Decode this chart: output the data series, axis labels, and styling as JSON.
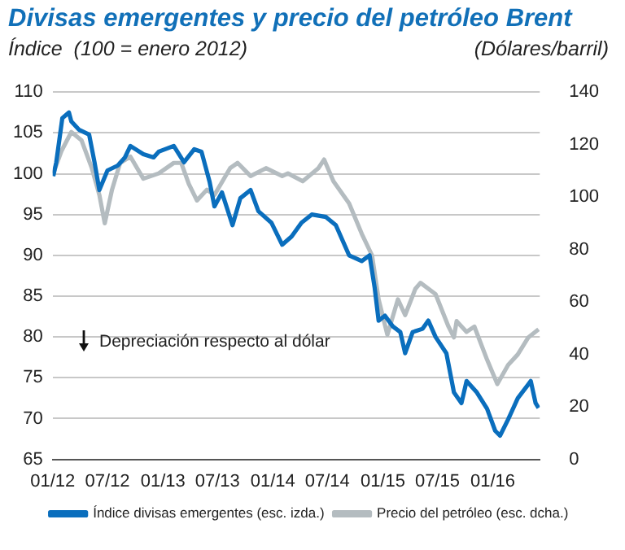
{
  "chart_data": {
    "type": "line",
    "title": "Divisas emergentes y precio del petróleo Brent",
    "ylabel": "Índice  (100 = enero 2012)",
    "y2label": "(Dólares/barril)",
    "annotations": [
      "Depreciación respecto al dólar"
    ],
    "xlim": [
      "2012-01-01",
      "2016-06-05"
    ],
    "xticks": [
      {
        "value": "2012-01-01",
        "label": "01/12"
      },
      {
        "value": "2012-07-01",
        "label": "07/12"
      },
      {
        "value": "2013-01-01",
        "label": "01/13"
      },
      {
        "value": "2013-07-01",
        "label": "07/13"
      },
      {
        "value": "2014-01-01",
        "label": "01/14"
      },
      {
        "value": "2014-07-01",
        "label": "07/14"
      },
      {
        "value": "2015-01-01",
        "label": "01/15"
      },
      {
        "value": "2015-07-01",
        "label": "07/15"
      },
      {
        "value": "2016-01-01",
        "label": "01/16"
      }
    ],
    "ylim": [
      65,
      110
    ],
    "yticks": [
      65,
      70,
      75,
      80,
      85,
      90,
      95,
      100,
      105,
      110
    ],
    "y2lim": [
      0,
      140
    ],
    "y2ticks": [
      0,
      20,
      40,
      60,
      80,
      100,
      120,
      140
    ],
    "grid": "y",
    "legend": "bottom",
    "marker": "none",
    "line_style": "solid",
    "series": [
      {
        "name": "Índice divisas emergentes (esc. izda.)",
        "color": "#0a6ebd",
        "axis": "y",
        "x": [
          "2012-01-03",
          "2012-01-13",
          "2012-02-02",
          "2012-02-24",
          "2012-03-03",
          "2012-03-28",
          "2012-05-01",
          "2012-05-19",
          "2012-06-04",
          "2012-07-01",
          "2012-08-04",
          "2012-08-28",
          "2012-09-15",
          "2012-10-28",
          "2012-12-01",
          "2012-12-18",
          "2013-02-06",
          "2013-03-12",
          "2013-04-15",
          "2013-05-09",
          "2013-06-05",
          "2013-06-21",
          "2013-07-16",
          "2013-08-20",
          "2013-09-15",
          "2013-10-19",
          "2013-11-14",
          "2013-12-27",
          "2014-02-01",
          "2014-03-04",
          "2014-04-06",
          "2014-05-10",
          "2014-06-26",
          "2014-07-29",
          "2014-09-11",
          "2014-10-23",
          "2014-11-18",
          "2014-12-05",
          "2014-12-18",
          "2015-01-08",
          "2015-02-03",
          "2015-02-28",
          "2015-03-16",
          "2015-04-10",
          "2015-05-13",
          "2015-06-01",
          "2015-06-25",
          "2015-07-31",
          "2015-08-25",
          "2015-09-19",
          "2015-10-06",
          "2015-11-09",
          "2015-12-13",
          "2016-01-09",
          "2016-01-25",
          "2016-02-21",
          "2016-03-24",
          "2016-04-28",
          "2016-05-06",
          "2016-05-22",
          "2016-06-01"
        ],
        "values": [
          99.7,
          101.4,
          106.8,
          107.5,
          106.4,
          105.4,
          104.8,
          101.4,
          98,
          100.4,
          101,
          102,
          103.4,
          102.4,
          102,
          102.7,
          103.4,
          101.4,
          103,
          102.7,
          99,
          96,
          97.7,
          93.7,
          97,
          98,
          95.4,
          94,
          91.3,
          92.3,
          94,
          95,
          94.7,
          93.7,
          90,
          89.3,
          90,
          86,
          82,
          82.6,
          81.3,
          80.6,
          78,
          80.6,
          81,
          82,
          80,
          78,
          73.2,
          71.9,
          74.6,
          73.2,
          71.2,
          68.5,
          67.9,
          69.9,
          72.5,
          74.2,
          74.6,
          71.9,
          71.3
        ]
      },
      {
        "name": "Precio del petróleo (esc. dcha.)",
        "color": "#b4bcc0",
        "axis": "y2",
        "x": [
          "2012-01-03",
          "2012-01-30",
          "2012-03-03",
          "2012-04-06",
          "2012-05-10",
          "2012-06-04",
          "2012-06-22",
          "2012-07-16",
          "2012-08-12",
          "2012-09-15",
          "2012-10-28",
          "2012-12-18",
          "2013-02-06",
          "2013-03-03",
          "2013-03-28",
          "2013-04-24",
          "2013-05-27",
          "2013-06-21",
          "2013-08-12",
          "2013-09-06",
          "2013-10-19",
          "2013-12-09",
          "2014-02-01",
          "2014-02-20",
          "2014-04-10",
          "2014-06-01",
          "2014-06-20",
          "2014-07-21",
          "2014-09-11",
          "2014-10-23",
          "2014-11-26",
          "2014-12-18",
          "2015-01-16",
          "2015-02-20",
          "2015-03-16",
          "2015-04-19",
          "2015-05-06",
          "2015-06-25",
          "2015-08-07",
          "2015-08-25",
          "2015-09-03",
          "2015-10-06",
          "2015-11-01",
          "2015-12-13",
          "2016-01-16",
          "2016-02-21",
          "2016-03-24",
          "2016-04-28",
          "2016-06-01"
        ],
        "values": [
          109,
          117.5,
          124.8,
          121.6,
          111,
          100.8,
          90,
          102.8,
          113,
          115.4,
          107,
          109,
          113,
          113,
          105,
          98.7,
          102.8,
          100.8,
          111,
          113,
          108,
          111,
          108,
          109,
          106,
          111,
          114.3,
          106,
          97.6,
          86,
          77.8,
          61,
          47.5,
          61,
          55,
          65,
          67.3,
          63,
          50.6,
          46.5,
          52.7,
          48.6,
          50.6,
          38,
          28.7,
          36,
          40,
          46.5,
          49.6
        ]
      }
    ]
  }
}
